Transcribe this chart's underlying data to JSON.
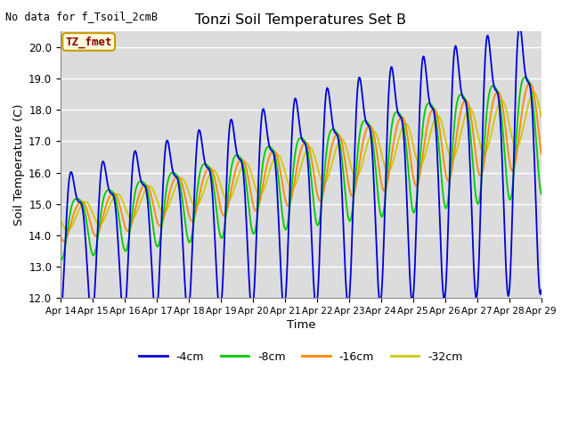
{
  "title": "Tonzi Soil Temperatures Set B",
  "no_data_text": "No data for f_Tsoil_2cmB",
  "annotation_text": "TZ_fmet",
  "xlabel": "Time",
  "ylabel": "Soil Temperature (C)",
  "ylim": [
    12.0,
    20.5
  ],
  "yticks": [
    12.0,
    13.0,
    14.0,
    15.0,
    16.0,
    17.0,
    18.0,
    19.0,
    20.0
  ],
  "bg_color": "#dcdcdc",
  "line_colors": {
    "-4cm": "#0000dd",
    "-8cm": "#00cc00",
    "-16cm": "#ff8800",
    "-32cm": "#cccc00"
  },
  "x_tick_labels": [
    "Apr 14",
    "Apr 15",
    "Apr 16",
    "Apr 17",
    "Apr 18",
    "Apr 19",
    "Apr 20",
    "Apr 21",
    "Apr 22",
    "Apr 23",
    "Apr 24",
    "Apr 25",
    "Apr 26",
    "Apr 27",
    "Apr 28",
    "Apr 29"
  ],
  "n_points": 720,
  "figsize": [
    6.4,
    4.8
  ],
  "dpi": 100
}
